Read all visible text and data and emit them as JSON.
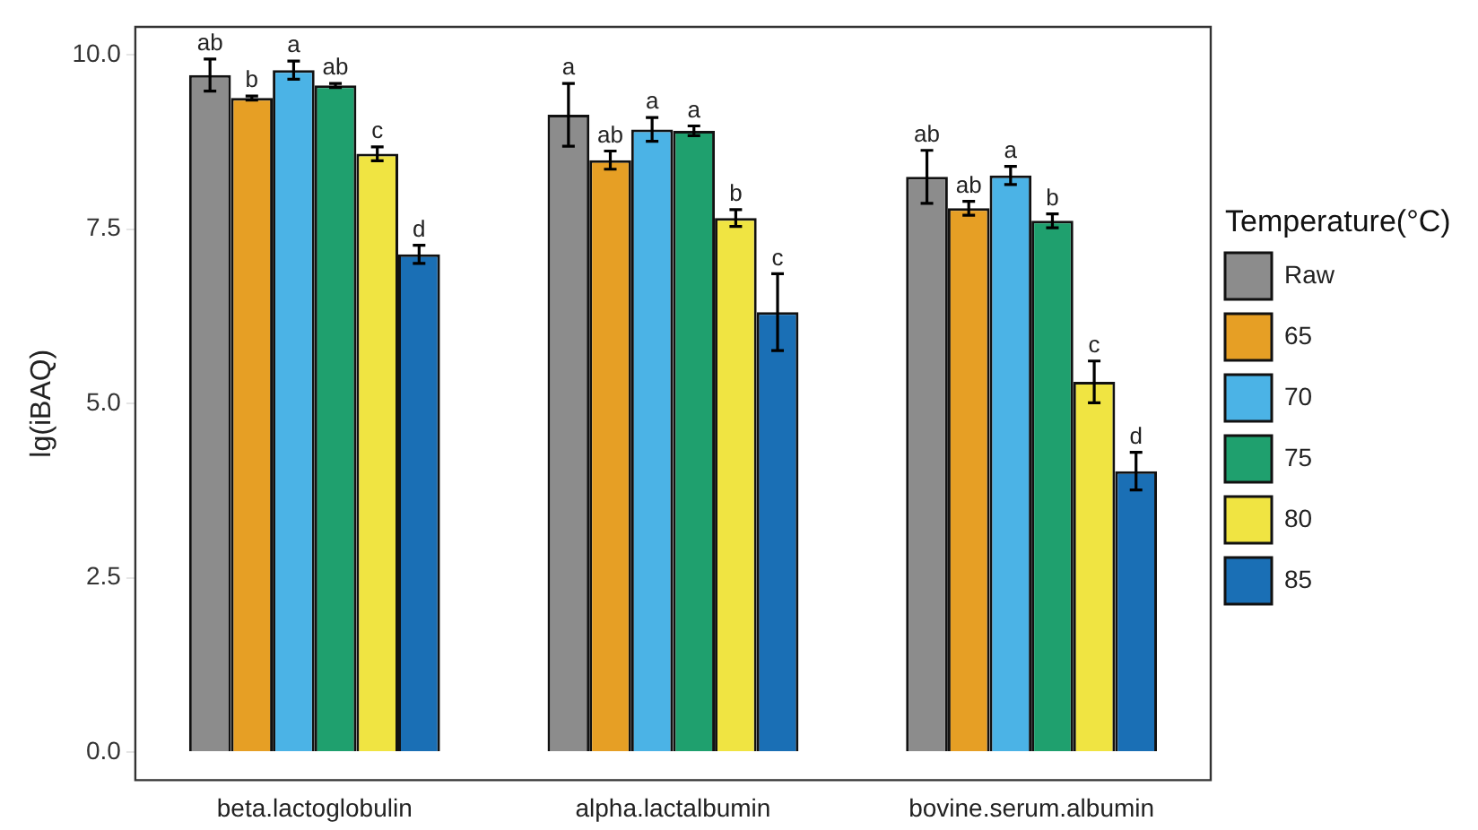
{
  "chart_data": {
    "type": "bar",
    "ylabel": "lg(iBAQ)",
    "legend_title": "Temperature(°C)",
    "legend": "right",
    "grid": false,
    "categories": [
      "beta.lactoglobulin",
      "alpha.lactalbumin",
      "bovine.serum.albumin"
    ],
    "ylim": [
      -0.4,
      10.4
    ],
    "yticks": [
      {
        "value": 0,
        "label": "0.0"
      },
      {
        "value": 2.5,
        "label": "2.5"
      },
      {
        "value": 5,
        "label": "5.0"
      },
      {
        "value": 7.5,
        "label": "7.5"
      },
      {
        "value": 10,
        "label": "10.0"
      }
    ],
    "series": [
      {
        "name": "Raw",
        "color": "#8c8c8c",
        "values": [
          9.71,
          9.14,
          8.25
        ],
        "errors": [
          0.23,
          0.45,
          0.38
        ],
        "value_labels": [
          "ab",
          "a",
          "ab"
        ]
      },
      {
        "name": "65",
        "color": "#e69f25",
        "values": [
          9.38,
          8.49,
          7.8
        ],
        "errors": [
          0.03,
          0.13,
          0.1
        ],
        "value_labels": [
          "b",
          "ab",
          "ab"
        ]
      },
      {
        "name": "70",
        "color": "#4bb3e6",
        "values": [
          9.78,
          8.93,
          8.27
        ],
        "errors": [
          0.13,
          0.17,
          0.13
        ],
        "value_labels": [
          "a",
          "a",
          "a"
        ]
      },
      {
        "name": "75",
        "color": "#1fa06e",
        "values": [
          9.56,
          8.91,
          7.62
        ],
        "errors": [
          0.03,
          0.07,
          0.1
        ],
        "value_labels": [
          "ab",
          "a",
          "b"
        ]
      },
      {
        "name": "80",
        "color": "#f0e442",
        "values": [
          8.58,
          7.66,
          5.31
        ],
        "errors": [
          0.1,
          0.12,
          0.3
        ],
        "value_labels": [
          "c",
          "b",
          "c"
        ]
      },
      {
        "name": "85",
        "color": "#1a6fb5",
        "values": [
          7.14,
          6.31,
          4.03
        ],
        "errors": [
          0.13,
          0.55,
          0.27
        ],
        "value_labels": [
          "d",
          "c",
          "d"
        ]
      }
    ]
  }
}
